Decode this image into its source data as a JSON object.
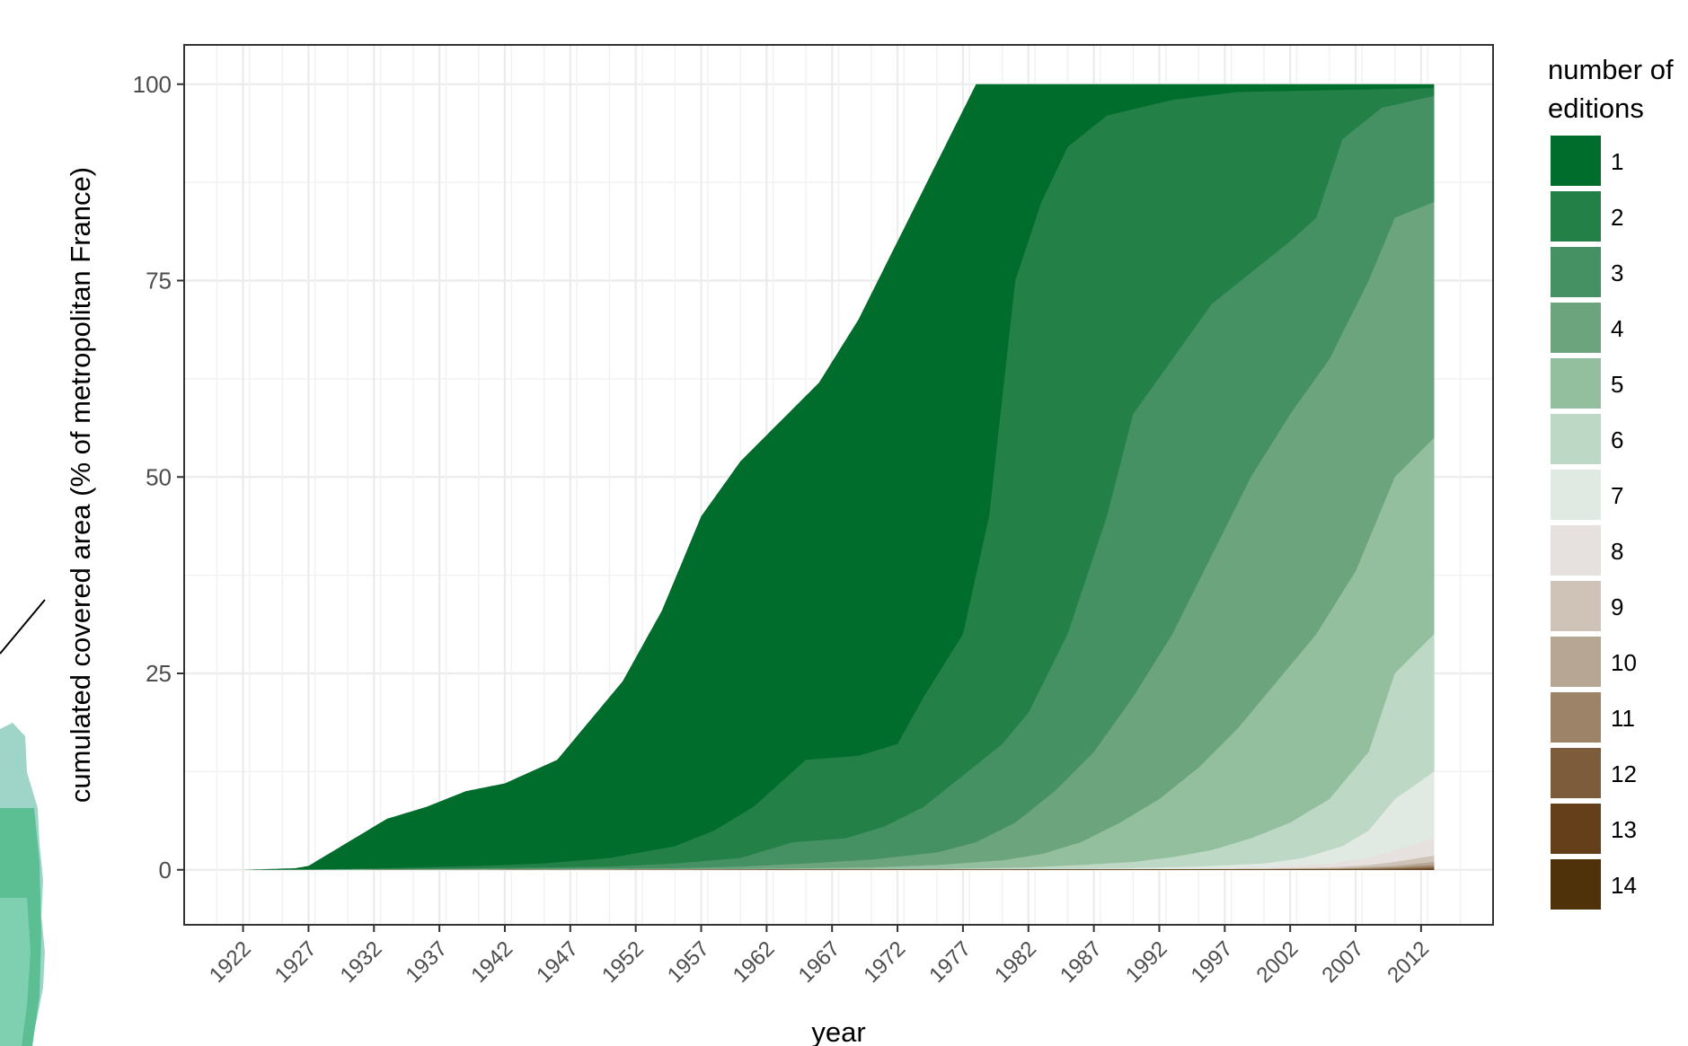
{
  "chart_data": {
    "type": "area",
    "stacked": true,
    "xlabel": "year",
    "ylabel": "cumulated covered area (% of metropolitan France)",
    "xlim": [
      1917.5,
      2017.5
    ],
    "ylim": [
      -7,
      105
    ],
    "x_ticks": [
      1922,
      1927,
      1932,
      1937,
      1942,
      1947,
      1952,
      1957,
      1962,
      1967,
      1972,
      1977,
      1982,
      1987,
      1992,
      1997,
      2002,
      2007,
      2012
    ],
    "y_ticks": [
      0,
      25,
      50,
      75,
      100
    ],
    "grid": true,
    "legend": {
      "title_line1": "number of",
      "title_line2": "editions",
      "position": "right"
    },
    "series": [
      {
        "name": "1",
        "color": "#006d2c",
        "points": [
          [
            1922,
            0
          ],
          [
            1926,
            0.2
          ],
          [
            1927,
            0.5
          ],
          [
            1930,
            3.5
          ],
          [
            1933,
            6.5
          ],
          [
            1936,
            8
          ],
          [
            1939,
            10
          ],
          [
            1942,
            11
          ],
          [
            1944,
            12.5
          ],
          [
            1946,
            14
          ],
          [
            1948,
            18
          ],
          [
            1951,
            24
          ],
          [
            1954,
            33
          ],
          [
            1957,
            45
          ],
          [
            1960,
            52
          ],
          [
            1963,
            57
          ],
          [
            1966,
            62
          ],
          [
            1969,
            70
          ],
          [
            1972,
            80
          ],
          [
            1975,
            90
          ],
          [
            1978,
            100
          ],
          [
            2013,
            100
          ]
        ]
      },
      {
        "name": "2",
        "color": "#238147",
        "points": [
          [
            1922,
            0
          ],
          [
            1930,
            0.1
          ],
          [
            1935,
            0.3
          ],
          [
            1940,
            0.5
          ],
          [
            1945,
            0.8
          ],
          [
            1950,
            1.5
          ],
          [
            1955,
            3
          ],
          [
            1958,
            5
          ],
          [
            1961,
            8
          ],
          [
            1963,
            11
          ],
          [
            1965,
            14
          ],
          [
            1969,
            14.5
          ],
          [
            1972,
            16
          ],
          [
            1974,
            22
          ],
          [
            1977,
            30
          ],
          [
            1979,
            45
          ],
          [
            1980,
            60
          ],
          [
            1981,
            75
          ],
          [
            1983,
            85
          ],
          [
            1985,
            92
          ],
          [
            1988,
            96
          ],
          [
            1993,
            98
          ],
          [
            1998,
            99
          ],
          [
            2013,
            99.5
          ]
        ]
      },
      {
        "name": "3",
        "color": "#459164",
        "points": [
          [
            1922,
            0
          ],
          [
            1940,
            0.2
          ],
          [
            1950,
            0.4
          ],
          [
            1955,
            0.8
          ],
          [
            1960,
            1.5
          ],
          [
            1964,
            3.5
          ],
          [
            1968,
            4
          ],
          [
            1971,
            5.5
          ],
          [
            1974,
            8
          ],
          [
            1977,
            12
          ],
          [
            1980,
            16
          ],
          [
            1982,
            20
          ],
          [
            1985,
            30
          ],
          [
            1988,
            45
          ],
          [
            1990,
            58
          ],
          [
            1993,
            65
          ],
          [
            1996,
            72
          ],
          [
            1999,
            76
          ],
          [
            2002,
            80
          ],
          [
            2004,
            83
          ],
          [
            2006,
            93
          ],
          [
            2009,
            97
          ],
          [
            2013,
            98.5
          ]
        ]
      },
      {
        "name": "4",
        "color": "#6ca47e",
        "points": [
          [
            1922,
            0
          ],
          [
            1955,
            0.2
          ],
          [
            1960,
            0.4
          ],
          [
            1965,
            0.8
          ],
          [
            1970,
            1.3
          ],
          [
            1975,
            2.2
          ],
          [
            1978,
            3.5
          ],
          [
            1981,
            6
          ],
          [
            1984,
            10
          ],
          [
            1987,
            15
          ],
          [
            1990,
            22
          ],
          [
            1993,
            30
          ],
          [
            1996,
            40
          ],
          [
            1999,
            50
          ],
          [
            2002,
            58
          ],
          [
            2005,
            65
          ],
          [
            2008,
            75
          ],
          [
            2010,
            83
          ],
          [
            2013,
            85
          ]
        ]
      },
      {
        "name": "5",
        "color": "#93bf9f",
        "points": [
          [
            1922,
            0
          ],
          [
            1960,
            0.1
          ],
          [
            1970,
            0.3
          ],
          [
            1975,
            0.6
          ],
          [
            1980,
            1.2
          ],
          [
            1983,
            2
          ],
          [
            1986,
            3.5
          ],
          [
            1989,
            6
          ],
          [
            1992,
            9
          ],
          [
            1995,
            13
          ],
          [
            1998,
            18
          ],
          [
            2001,
            24
          ],
          [
            2004,
            30
          ],
          [
            2007,
            38
          ],
          [
            2010,
            50
          ],
          [
            2013,
            55
          ]
        ]
      },
      {
        "name": "6",
        "color": "#bed8c6",
        "points": [
          [
            1922,
            0
          ],
          [
            1975,
            0.1
          ],
          [
            1982,
            0.3
          ],
          [
            1986,
            0.6
          ],
          [
            1990,
            1
          ],
          [
            1993,
            1.6
          ],
          [
            1996,
            2.5
          ],
          [
            1999,
            4
          ],
          [
            2002,
            6
          ],
          [
            2005,
            9
          ],
          [
            2008,
            15
          ],
          [
            2010,
            25
          ],
          [
            2013,
            30
          ]
        ]
      },
      {
        "name": "7",
        "color": "#e1e9e3",
        "points": [
          [
            1922,
            0
          ],
          [
            1985,
            0.1
          ],
          [
            1990,
            0.2
          ],
          [
            1995,
            0.4
          ],
          [
            2000,
            0.8
          ],
          [
            2003,
            1.5
          ],
          [
            2006,
            3
          ],
          [
            2008,
            5
          ],
          [
            2010,
            9
          ],
          [
            2013,
            12.5
          ]
        ]
      },
      {
        "name": "8",
        "color": "#e6e1de",
        "points": [
          [
            1922,
            0
          ],
          [
            1995,
            0.1
          ],
          [
            2000,
            0.3
          ],
          [
            2005,
            0.8
          ],
          [
            2008,
            1.5
          ],
          [
            2010,
            2.5
          ],
          [
            2013,
            4
          ]
        ]
      },
      {
        "name": "9",
        "color": "#cfc3b7",
        "points": [
          [
            1922,
            0
          ],
          [
            2000,
            0.1
          ],
          [
            2005,
            0.3
          ],
          [
            2008,
            0.6
          ],
          [
            2010,
            1
          ],
          [
            2013,
            1.8
          ]
        ]
      },
      {
        "name": "10",
        "color": "#b7a693",
        "points": [
          [
            1922,
            0
          ],
          [
            2002,
            0.1
          ],
          [
            2006,
            0.2
          ],
          [
            2010,
            0.5
          ],
          [
            2013,
            1
          ]
        ]
      },
      {
        "name": "11",
        "color": "#9d8468",
        "points": [
          [
            1922,
            0
          ],
          [
            2005,
            0.1
          ],
          [
            2010,
            0.3
          ],
          [
            2013,
            0.6
          ]
        ]
      },
      {
        "name": "12",
        "color": "#7d5c3c",
        "points": [
          [
            1922,
            0
          ],
          [
            2008,
            0.1
          ],
          [
            2013,
            0.3
          ]
        ]
      },
      {
        "name": "13",
        "color": "#643f19",
        "points": [
          [
            1922,
            0
          ],
          [
            2010,
            0.05
          ],
          [
            2013,
            0.15
          ]
        ]
      },
      {
        "name": "14",
        "color": "#50320a",
        "points": [
          [
            1922,
            0
          ],
          [
            2012,
            0.03
          ],
          [
            2013,
            0.05
          ]
        ]
      }
    ]
  }
}
